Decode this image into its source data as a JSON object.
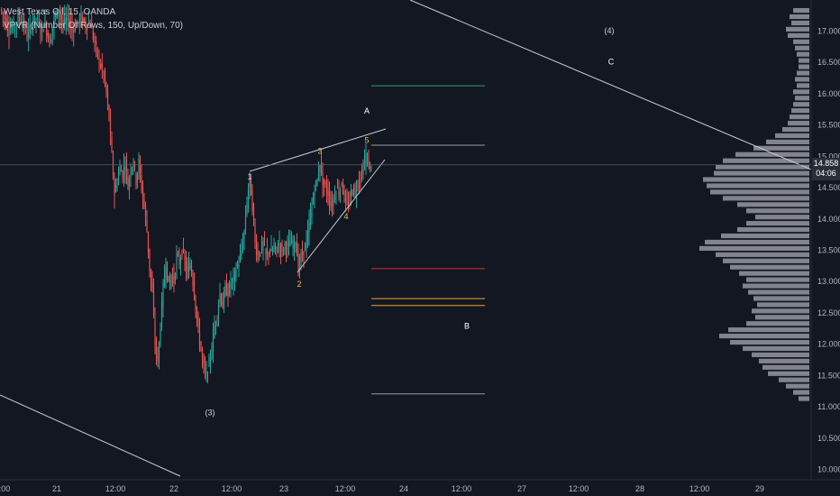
{
  "legend": {
    "line1": "West Texas Oil, 15, OANDA",
    "line2": "VPVR (Number Of Rows, 150, Up/Down, 70)"
  },
  "last_price": {
    "price": "14.858",
    "countdown": "04:06"
  },
  "chart_data": [
    {
      "type": "candlestick",
      "title": "West Texas Oil, 15, OANDA",
      "y_axis": {
        "range": [
          9.93,
          17.4
        ],
        "ticks": [
          "10.000",
          "10.500",
          "11.000",
          "11.500",
          "12.000",
          "12.500",
          "13.000",
          "13.500",
          "14.000",
          "14.500",
          "15.000",
          "15.500",
          "16.000",
          "16.500",
          "17.000"
        ]
      },
      "x_axis": {
        "ticks": [
          "12:00",
          "21",
          "12:00",
          "22",
          "12:00",
          "23",
          "12:00",
          "24",
          "12:00",
          "27",
          "12:00",
          "28",
          "12:00",
          "29"
        ]
      },
      "price_path": [
        [
          0,
          17.35
        ],
        [
          5,
          17.2
        ],
        [
          10,
          17.0
        ],
        [
          15,
          17.05
        ],
        [
          20,
          17.2
        ],
        [
          25,
          17.15
        ],
        [
          30,
          16.9
        ],
        [
          35,
          17.1
        ],
        [
          40,
          17.2
        ],
        [
          45,
          17.0
        ],
        [
          50,
          17.1
        ],
        [
          55,
          16.8
        ],
        [
          60,
          17.2
        ],
        [
          65,
          17.3
        ],
        [
          70,
          17.1
        ],
        [
          75,
          17.2
        ],
        [
          80,
          17.0
        ],
        [
          85,
          17.1
        ],
        [
          90,
          17.2
        ],
        [
          95,
          17.1
        ],
        [
          100,
          17.1
        ],
        [
          105,
          16.8
        ],
        [
          110,
          16.5
        ],
        [
          115,
          16.3
        ],
        [
          118,
          16.0
        ],
        [
          121,
          15.6
        ],
        [
          124,
          15.0
        ],
        [
          127,
          14.4
        ],
        [
          130,
          14.6
        ],
        [
          133,
          14.8
        ],
        [
          136,
          14.7
        ],
        [
          139,
          14.9
        ],
        [
          142,
          14.5
        ],
        [
          145,
          14.8
        ],
        [
          148,
          14.9
        ],
        [
          151,
          14.6
        ],
        [
          154,
          14.9
        ],
        [
          157,
          14.5
        ],
        [
          160,
          14.2
        ],
        [
          163,
          13.8
        ],
        [
          166,
          13.2
        ],
        [
          169,
          12.8
        ],
        [
          172,
          12.0
        ],
        [
          175,
          11.7
        ],
        [
          178,
          12.3
        ],
        [
          181,
          12.9
        ],
        [
          184,
          13.3
        ],
        [
          187,
          12.9
        ],
        [
          190,
          13.1
        ],
        [
          193,
          13.0
        ],
        [
          196,
          13.4
        ],
        [
          199,
          13.3
        ],
        [
          202,
          13.5
        ],
        [
          205,
          13.3
        ],
        [
          208,
          13.1
        ],
        [
          211,
          13.3
        ],
        [
          214,
          13.0
        ],
        [
          217,
          12.6
        ],
        [
          220,
          12.2
        ],
        [
          223,
          11.9
        ],
        [
          226,
          11.6
        ],
        [
          229,
          11.5
        ],
        [
          232,
          11.7
        ],
        [
          235,
          11.9
        ],
        [
          238,
          12.3
        ],
        [
          241,
          12.5
        ],
        [
          244,
          12.8
        ],
        [
          247,
          12.6
        ],
        [
          250,
          12.9
        ],
        [
          253,
          12.8
        ],
        [
          256,
          13.0
        ],
        [
          259,
          13.0
        ],
        [
          262,
          13.2
        ],
        [
          265,
          13.3
        ],
        [
          268,
          13.5
        ],
        [
          271,
          13.8
        ],
        [
          274,
          14.3
        ],
        [
          277,
          14.65
        ],
        [
          280,
          14.2
        ],
        [
          283,
          13.6
        ],
        [
          286,
          13.4
        ],
        [
          289,
          13.5
        ],
        [
          292,
          13.6
        ],
        [
          295,
          13.4
        ],
        [
          298,
          13.5
        ],
        [
          301,
          13.45
        ],
        [
          304,
          13.55
        ],
        [
          307,
          13.5
        ],
        [
          310,
          13.6
        ],
        [
          313,
          13.5
        ],
        [
          316,
          13.6
        ],
        [
          319,
          13.55
        ],
        [
          322,
          13.6
        ],
        [
          325,
          13.55
        ],
        [
          328,
          13.65
        ],
        [
          331,
          13.2
        ],
        [
          334,
          13.4
        ],
        [
          337,
          13.5
        ],
        [
          340,
          13.6
        ],
        [
          343,
          13.9
        ],
        [
          346,
          14.2
        ],
        [
          349,
          14.5
        ],
        [
          352,
          14.6
        ],
        [
          355,
          14.9
        ],
        [
          358,
          14.6
        ],
        [
          361,
          14.5
        ],
        [
          364,
          14.4
        ],
        [
          367,
          14.2
        ],
        [
          370,
          14.3
        ],
        [
          373,
          14.5
        ],
        [
          376,
          14.4
        ],
        [
          379,
          14.6
        ],
        [
          382,
          14.3
        ],
        [
          385,
          14.2
        ],
        [
          388,
          14.3
        ],
        [
          391,
          14.5
        ],
        [
          394,
          14.4
        ],
        [
          397,
          14.6
        ],
        [
          400,
          14.7
        ],
        [
          403,
          14.8
        ],
        [
          406,
          15.0
        ],
        [
          409,
          14.85
        ],
        [
          412,
          14.86
        ]
      ]
    }
  ],
  "vpvr_profile": {
    "price_levels": [
      17.32,
      17.22,
      17.12,
      17.02,
      16.92,
      16.82,
      16.72,
      16.62,
      16.52,
      16.42,
      16.32,
      16.22,
      16.12,
      16.02,
      15.92,
      15.82,
      15.72,
      15.62,
      15.52,
      15.42,
      15.32,
      15.22,
      15.12,
      15.02,
      14.92,
      14.82,
      14.72,
      14.62,
      14.52,
      14.42,
      14.32,
      14.22,
      14.12,
      14.02,
      13.92,
      13.82,
      13.72,
      13.62,
      13.52,
      13.42,
      13.32,
      13.22,
      13.12,
      13.02,
      12.92,
      12.82,
      12.72,
      12.62,
      12.52,
      12.42,
      12.32,
      12.22,
      12.12,
      12.02,
      11.92,
      11.82,
      11.72,
      11.62,
      11.52,
      11.42,
      11.32,
      11.22,
      11.12
    ],
    "volumes": [
      18,
      22,
      20,
      26,
      24,
      18,
      16,
      14,
      12,
      12,
      14,
      16,
      14,
      18,
      16,
      18,
      20,
      22,
      24,
      30,
      38,
      48,
      62,
      82,
      96,
      104,
      106,
      118,
      114,
      110,
      96,
      80,
      70,
      60,
      70,
      80,
      98,
      116,
      122,
      104,
      96,
      88,
      78,
      70,
      74,
      68,
      62,
      58,
      64,
      60,
      70,
      90,
      100,
      88,
      74,
      64,
      56,
      52,
      46,
      34,
      26,
      18,
      12
    ]
  },
  "annotations": {
    "wave_labels": [
      {
        "text": "(4)",
        "price": 17.0,
        "t": 676,
        "color": "#d1d4dc"
      },
      {
        "text": "C",
        "price": 16.5,
        "t": 678,
        "color": "#ffffff"
      },
      {
        "text": "A",
        "price": 15.72,
        "t": 407,
        "color": "#ffffff"
      },
      {
        "text": "5",
        "price": 15.25,
        "t": 407,
        "color": "#f0c060"
      },
      {
        "text": "3",
        "price": 15.08,
        "t": 355,
        "color": "#f0c060"
      },
      {
        "text": "1",
        "price": 14.67,
        "t": 277,
        "color": "#d1d4dc"
      },
      {
        "text": "4",
        "price": 14.03,
        "t": 384,
        "color": "#f0c060"
      },
      {
        "text": "2",
        "price": 12.95,
        "t": 332,
        "color": "#f0c060"
      },
      {
        "text": "B",
        "price": 12.28,
        "t": 518,
        "color": "#ffffff"
      },
      {
        "text": "(3)",
        "price": 10.9,
        "t": 233,
        "color": "#d1d4dc"
      }
    ],
    "fib_levels": [
      {
        "price": 16.12,
        "color": "#26a65b"
      },
      {
        "price": 15.17,
        "color": "#9598a1"
      },
      {
        "price": 13.2,
        "color": "#d32f2f"
      },
      {
        "price": 12.72,
        "color": "#f0a030"
      },
      {
        "price": 12.61,
        "color": "#f0a030"
      },
      {
        "price": 11.2,
        "color": "#9598a1"
      }
    ]
  },
  "colors": {
    "background": "#131722",
    "up": "#26a69a",
    "down": "#ef5350",
    "axis_text": "#b2b5be",
    "vpvr_bar": "#9598a1",
    "trendline": "#c8cbd2"
  }
}
